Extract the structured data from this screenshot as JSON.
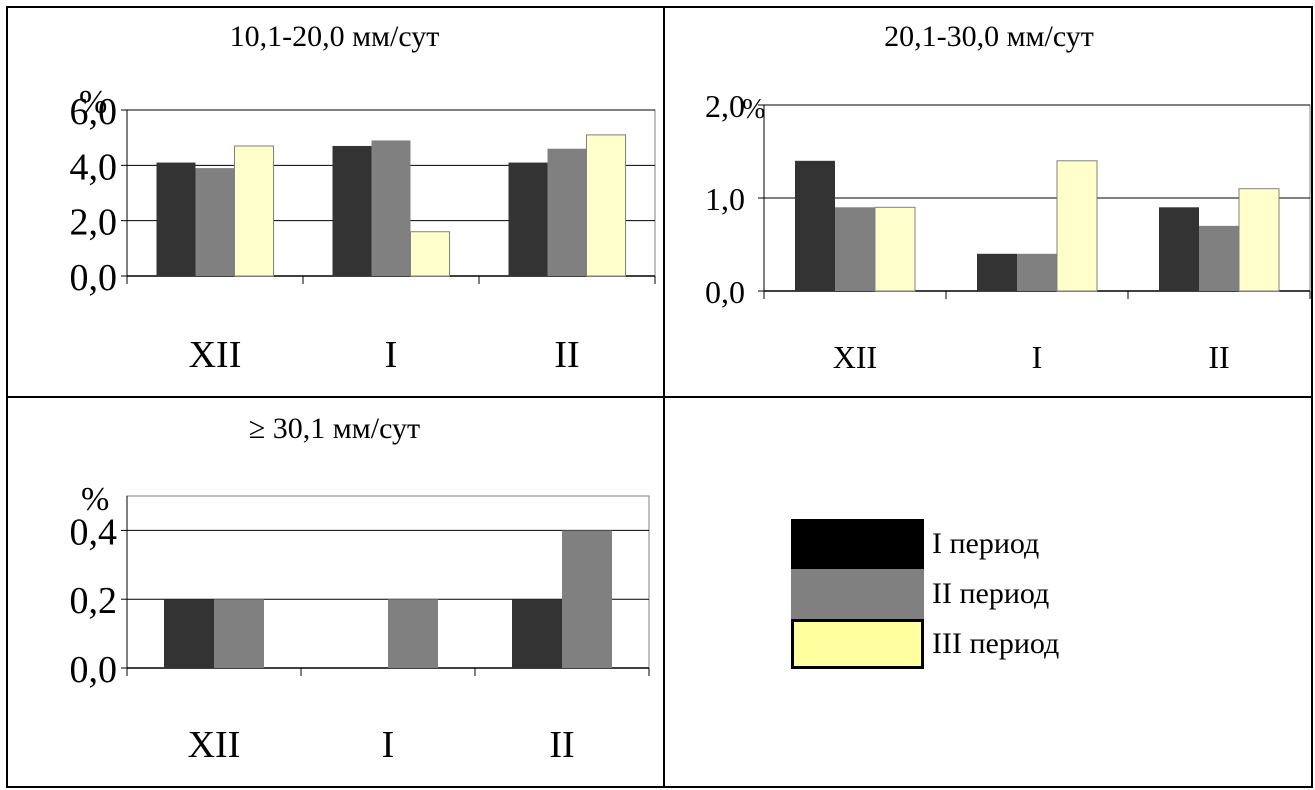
{
  "colors": {
    "period1": "#333333",
    "period2": "#808080",
    "period3": "#ffffcc",
    "grid": "#000000"
  },
  "legend": [
    {
      "label": "I период",
      "color": "#000000"
    },
    {
      "label": "II период",
      "color": "#808080"
    },
    {
      "label": "III период",
      "color": "#ffffa0"
    }
  ],
  "chart_data": [
    {
      "type": "bar",
      "title": "10,1-20,0 мм/сут",
      "ylabel": "%",
      "categories": [
        "XII",
        "I",
        "II"
      ],
      "series": [
        {
          "name": "I период",
          "values": [
            4.1,
            4.7,
            4.1
          ]
        },
        {
          "name": "II период",
          "values": [
            3.9,
            4.9,
            4.6
          ]
        },
        {
          "name": "III период",
          "values": [
            4.7,
            1.6,
            5.1
          ]
        }
      ],
      "yticks": [
        "0,0",
        "2,0",
        "4,0",
        "6,0"
      ],
      "ylim": [
        0,
        6
      ],
      "grid": true
    },
    {
      "type": "bar",
      "title": "20,1-30,0 мм/сут",
      "ylabel": "%",
      "categories": [
        "XII",
        "I",
        "II"
      ],
      "series": [
        {
          "name": "I период",
          "values": [
            1.4,
            0.4,
            0.9
          ]
        },
        {
          "name": "II период",
          "values": [
            0.9,
            0.4,
            0.7
          ]
        },
        {
          "name": "III период",
          "values": [
            0.9,
            1.4,
            1.1
          ]
        }
      ],
      "yticks": [
        "0,0",
        "1,0",
        "2,0"
      ],
      "ylim": [
        0,
        2
      ],
      "grid": true
    },
    {
      "type": "bar",
      "title": "≥ 30,1 мм/сут",
      "ylabel": "%",
      "categories": [
        "XII",
        "I",
        "II"
      ],
      "series": [
        {
          "name": "I период",
          "values": [
            0.2,
            0,
            0.2
          ]
        },
        {
          "name": "II период",
          "values": [
            0.2,
            0.2,
            0.4
          ]
        }
      ],
      "yticks": [
        "0,0",
        "0,2",
        "0,4"
      ],
      "ylim": [
        0,
        0.5
      ],
      "grid": true
    }
  ]
}
